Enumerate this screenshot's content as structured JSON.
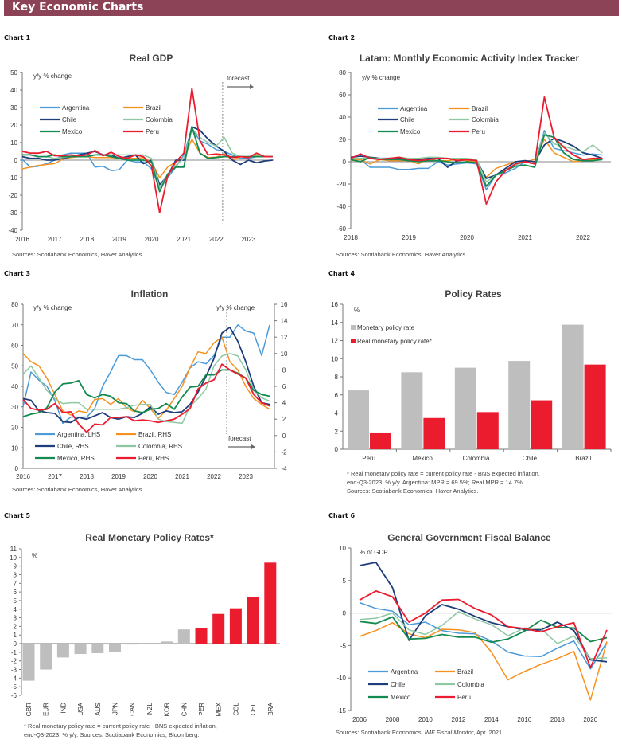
{
  "header": {
    "title": "Key Economic Charts"
  },
  "colors": {
    "Argentina": "#4b9bd9",
    "Brazil": "#f7911e",
    "Chile": "#1e3d7b",
    "Colombia": "#8ec8a2",
    "Mexico": "#138a4f",
    "Peru": "#ec1c2f",
    "grey_bar": "#bebebe",
    "red_bar": "#ec1c2f",
    "header_bg": "#8c4257"
  },
  "chart_data": [
    {
      "label": "Chart 1",
      "type": "line",
      "title": "Real GDP",
      "y_unit": "y/y % change",
      "ylim": [
        -40,
        50
      ],
      "y_ticks": [
        "-40",
        "-30",
        "-20",
        "-10",
        "0",
        "10",
        "20",
        "30",
        "40",
        "50"
      ],
      "x_ticks": [
        "2016",
        "2017",
        "2018",
        "2019",
        "2020",
        "2021",
        "2022",
        "2023"
      ],
      "x_start": 2016,
      "x_step": 0.25,
      "forecast_label": "forecast",
      "forecast_from": 2022.2,
      "series": [
        {
          "name": "Argentina",
          "values": [
            0.5,
            -4,
            -3.5,
            -2,
            0,
            3,
            4,
            4,
            4,
            -4,
            -3.5,
            -6,
            -5.5,
            0,
            -1,
            -1,
            -5,
            -16,
            -10,
            -4,
            3,
            18,
            11,
            9,
            6,
            5,
            3,
            1,
            1,
            2,
            2,
            2
          ]
        },
        {
          "name": "Brazil",
          "values": [
            -5,
            -4,
            -3,
            -2.5,
            -2,
            0.5,
            1.5,
            2,
            2,
            1.5,
            1.5,
            1.5,
            1,
            1,
            1,
            1.5,
            -1,
            -10,
            -4,
            -1,
            1,
            12,
            4,
            1.5,
            1.7,
            3.7,
            0,
            2,
            2,
            2.5,
            2,
            2
          ]
        },
        {
          "name": "Chile",
          "values": [
            2,
            1,
            1,
            0,
            0,
            1,
            2,
            3,
            4,
            5,
            3,
            3,
            1,
            2,
            3,
            -2,
            0,
            -14,
            -9,
            0,
            0,
            19,
            17,
            12,
            8,
            5,
            0,
            -2.5,
            0,
            -1.5,
            -0.5,
            0
          ]
        },
        {
          "name": "Colombia",
          "values": [
            3,
            3,
            2,
            2,
            1,
            1.5,
            2,
            2,
            2,
            3,
            3,
            3,
            3,
            3,
            3,
            3,
            1,
            -16,
            -8,
            -3,
            1,
            18,
            13,
            10,
            8,
            13,
            4,
            2,
            2,
            3,
            2,
            2
          ]
        },
        {
          "name": "Mexico",
          "values": [
            3,
            3,
            2,
            2,
            3,
            2,
            2,
            2,
            2,
            3,
            3,
            2,
            1,
            0,
            0,
            0,
            -1,
            -18,
            -8,
            -4,
            -4,
            19,
            4,
            1,
            1.5,
            2,
            2,
            2,
            2,
            2,
            2,
            2
          ]
        },
        {
          "name": "Peru",
          "values": [
            5,
            4,
            4,
            5,
            2.5,
            2.5,
            3,
            2.5,
            3,
            5.5,
            2.5,
            4.5,
            2,
            1,
            3,
            2,
            -3.5,
            -30,
            -9,
            -1,
            4,
            41,
            11,
            3,
            3.5,
            3,
            1.5,
            2,
            1.5,
            4,
            2,
            2
          ]
        }
      ],
      "sources": "Sources: Scotiabank Economics, Haver Analytics."
    },
    {
      "label": "Chart 2",
      "type": "line",
      "title": "Latam: Monthly Economic Activity Index Tracker",
      "y_unit": "y/y % change",
      "ylim": [
        -60,
        80
      ],
      "y_ticks": [
        "-60",
        "-40",
        "-20",
        "0",
        "20",
        "40",
        "60",
        "80"
      ],
      "x_ticks": [
        "2018",
        "2019",
        "2020",
        "2021",
        "2022"
      ],
      "x_start": 2018,
      "x_step": 0.1667,
      "series": [
        {
          "name": "Argentina",
          "values": [
            4,
            2,
            -5,
            -5,
            -5,
            -7,
            -7,
            -6,
            -6,
            0,
            -3,
            -2,
            -1,
            -2,
            -25,
            -12,
            -10,
            -6,
            0,
            -2,
            28,
            12,
            10,
            8,
            6,
            7,
            6
          ]
        },
        {
          "name": "Brazil",
          "values": [
            1,
            2,
            -2,
            2,
            1,
            1,
            1,
            -2,
            3,
            1,
            1,
            2,
            1,
            0,
            -14,
            -6,
            -3,
            0,
            0,
            2,
            20,
            8,
            4,
            0,
            1,
            2,
            3
          ]
        },
        {
          "name": "Chile",
          "values": [
            4,
            5,
            4,
            3,
            3,
            3,
            1,
            2,
            3,
            3,
            -5,
            1,
            2,
            1,
            -15,
            -12,
            -6,
            0,
            1,
            0,
            15,
            21,
            18,
            14,
            8,
            6,
            3
          ]
        },
        {
          "name": "Colombia",
          "values": [
            3,
            3,
            3,
            3,
            3,
            4,
            3,
            3,
            4,
            4,
            3,
            3,
            3,
            2,
            -18,
            -12,
            -8,
            -3,
            0,
            -2,
            26,
            16,
            14,
            11,
            9,
            15,
            8
          ]
        },
        {
          "name": "Mexico",
          "values": [
            2,
            0,
            4,
            2,
            2,
            2,
            1,
            0,
            1,
            1,
            0,
            -1,
            0,
            -1,
            -22,
            -12,
            -8,
            -4,
            -3,
            -5,
            24,
            22,
            8,
            2,
            1,
            1,
            2
          ]
        },
        {
          "name": "Peru",
          "values": [
            3,
            7,
            3,
            2,
            3,
            4,
            2,
            1,
            2,
            3,
            3,
            1,
            2,
            1,
            -38,
            -18,
            -8,
            -2,
            0,
            -2,
            58,
            22,
            13,
            6,
            2,
            3,
            3
          ]
        }
      ],
      "sources": "Sources: Scotiabank Economics, Haver Analytics."
    },
    {
      "label": "Chart 3",
      "type": "line",
      "title": "Inflation",
      "y_unit": "y/y % change",
      "y2_unit": "y/y % change",
      "ylim": [
        0,
        80
      ],
      "y_ticks": [
        "0",
        "10",
        "20",
        "30",
        "40",
        "50",
        "60",
        "70",
        "80"
      ],
      "y2lim": [
        -4,
        16
      ],
      "y2_ticks": [
        "-4",
        "-2",
        "0",
        "2",
        "4",
        "6",
        "8",
        "10",
        "12",
        "14",
        "16"
      ],
      "x_ticks": [
        "2016",
        "2017",
        "2018",
        "2019",
        "2020",
        "2021",
        "2022",
        "2023"
      ],
      "x_start": 2016,
      "x_step": 0.25,
      "forecast_label": "forecast",
      "forecast_from": 2022.4,
      "series": [
        {
          "name": "Argentina",
          "legend": "Argentina, LHS",
          "axis": "left",
          "values": [
            30,
            47,
            43,
            40,
            33,
            22,
            25,
            25,
            25,
            29,
            40,
            47,
            55,
            55,
            53,
            53,
            48,
            42,
            37,
            36,
            42,
            49,
            52,
            51,
            55,
            64,
            64,
            70,
            67,
            66,
            55,
            70
          ]
        },
        {
          "name": "Brazil",
          "legend": "Brazil, RHS",
          "axis": "right",
          "values": [
            10,
            9,
            8.5,
            7,
            5,
            3,
            2.5,
            3,
            2.8,
            4.4,
            4.5,
            3.8,
            4.5,
            3.4,
            2.9,
            4.3,
            3.3,
            2.1,
            3.1,
            4.5,
            6,
            8.3,
            10.2,
            10,
            11.3,
            12,
            9,
            8,
            6,
            4.5,
            3.8,
            3.2
          ]
        },
        {
          "name": "Chile",
          "legend": "Chile, RHS",
          "axis": "right",
          "values": [
            4.5,
            4.3,
            3,
            2.8,
            2.7,
            1.7,
            1.6,
            2.2,
            2,
            2.4,
            2.8,
            2.2,
            2,
            2.3,
            2.2,
            2.7,
            3.5,
            2.6,
            3,
            2.8,
            2.9,
            3.8,
            5.3,
            7.2,
            9.4,
            12.5,
            13.2,
            11.5,
            9,
            6,
            4,
            3.8
          ]
        },
        {
          "name": "Colombia",
          "legend": "Colombia, RHS",
          "axis": "right",
          "values": [
            7.5,
            8.5,
            7,
            5.5,
            4.5,
            3.9,
            4,
            4,
            3.2,
            3.2,
            3.2,
            3.2,
            3.2,
            3.4,
            3.7,
            3.8,
            3.8,
            2,
            1.7,
            1.6,
            1.5,
            3.6,
            4.5,
            5.7,
            8.5,
            9.7,
            10,
            9.7,
            8,
            5.5,
            4.6,
            4.2
          ]
        },
        {
          "name": "Mexico",
          "legend": "Mexico, RHS",
          "axis": "right",
          "values": [
            2.3,
            2.6,
            2.8,
            3.4,
            5.3,
            6.3,
            6.4,
            6.7,
            5,
            4.6,
            5,
            4.8,
            4,
            3.9,
            3,
            2.8,
            3.2,
            3.3,
            3.9,
            3.2,
            4.7,
            5.9,
            6,
            7.4,
            7.4,
            8,
            8,
            7.6,
            7,
            5.5,
            5,
            4.8
          ]
        },
        {
          "name": "Peru",
          "legend": "Peru, RHS",
          "axis": "right",
          "values": [
            4.4,
            3.3,
            3.1,
            3.2,
            3.9,
            2.8,
            2.9,
            1.4,
            0.4,
            1.4,
            1.3,
            2.2,
            2.2,
            2.3,
            1.8,
            1.9,
            1.8,
            1.6,
            1.8,
            2,
            2.6,
            3.3,
            5.7,
            6.4,
            6.8,
            8.7,
            8,
            7.5,
            7,
            5,
            4,
            3.6
          ]
        }
      ],
      "sources": "Sources: Scotiabank Economics, Haver Analytics."
    },
    {
      "label": "Chart 4",
      "type": "bar",
      "title": "Policy Rates",
      "y_unit": "%",
      "ylim": [
        0,
        16
      ],
      "y_ticks": [
        "0",
        "2",
        "4",
        "6",
        "8",
        "10",
        "12",
        "14",
        "16"
      ],
      "categories": [
        "Peru",
        "Mexico",
        "Colombia",
        "Chile",
        "Brazil"
      ],
      "series": [
        {
          "name": "Monetary policy rate",
          "color": "#bebebe",
          "values": [
            6.5,
            8.5,
            9.0,
            9.75,
            13.75
          ]
        },
        {
          "name": "Real monetary policy rate*",
          "color": "#ec1c2f",
          "values": [
            1.85,
            3.45,
            4.1,
            5.4,
            9.35
          ]
        }
      ],
      "footnote": [
        "* Real monetary policy rate = current policy rate - BNS expected inflation,",
        "end-Q3-2023, % y/y. Argentina: MPR = 69.5%; Real MPR = 14.7%.",
        "Sources: Scotiabank Economics, Haver Analytics."
      ]
    },
    {
      "label": "Chart 5",
      "type": "bar",
      "title": "Real Monetary Policy Rates*",
      "y_unit": "%",
      "ylim": [
        -6,
        11
      ],
      "y_ticks": [
        "-6",
        "-5",
        "-4",
        "-3",
        "-2",
        "-1",
        "0",
        "1",
        "2",
        "3",
        "4",
        "5",
        "6",
        "7",
        "8",
        "9",
        "10",
        "11"
      ],
      "categories": [
        "GBR",
        "EUR",
        "IND",
        "USA",
        "AUS",
        "JPN",
        "CAN",
        "NZL",
        "KOR",
        "CHN",
        "PER",
        "MEX",
        "COL",
        "CHL",
        "BRA"
      ],
      "values": [
        -4.3,
        -3.0,
        -1.6,
        -1.2,
        -1.1,
        -1.0,
        -0.1,
        0.0,
        0.25,
        1.65,
        1.85,
        3.45,
        4.1,
        5.4,
        9.4
      ],
      "highlight": [
        false,
        false,
        false,
        false,
        false,
        false,
        false,
        false,
        false,
        false,
        true,
        true,
        true,
        true,
        true
      ],
      "footnote": [
        "* Real monetary policy rate = current policy rate - BNS expected inflation,",
        "end-Q3-2023, % y/y. Sources: Scotiabank Economics, Bloomberg."
      ]
    },
    {
      "label": "Chart 6",
      "type": "line",
      "title": "General Government Fiscal Balance",
      "y_unit": "% of GDP",
      "ylim": [
        -15,
        10
      ],
      "y_ticks": [
        "-15",
        "-10",
        "-5",
        "0",
        "5",
        "10"
      ],
      "x_ticks": [
        "2006",
        "2008",
        "2010",
        "2012",
        "2014",
        "2016",
        "2018",
        "2020"
      ],
      "x_start": 2006,
      "x_step": 1,
      "series": [
        {
          "name": "Argentina",
          "values": [
            1.6,
            0.7,
            0.3,
            -1.8,
            -1.4,
            -2.7,
            -3.1,
            -3.2,
            -4.3,
            -6,
            -6.6,
            -6.7,
            -5.4,
            -4.3,
            -8.6,
            -4.5
          ]
        },
        {
          "name": "Brazil",
          "values": [
            -3.6,
            -2.7,
            -1.5,
            -3.2,
            -3.8,
            -2.5,
            -2.6,
            -3,
            -6,
            -10.3,
            -9,
            -7.9,
            -7,
            -5.9,
            -13.4,
            -4.4
          ]
        },
        {
          "name": "Chile",
          "values": [
            7.3,
            7.8,
            3.9,
            -4.2,
            -0.4,
            1.3,
            0.6,
            -0.5,
            -1.5,
            -2.1,
            -2.6,
            -2.6,
            -1.4,
            -2.7,
            -7.2,
            -7.5
          ]
        },
        {
          "name": "Colombia",
          "values": [
            -1,
            -0.8,
            0,
            -2.6,
            -3.3,
            -1.9,
            0.2,
            -0.9,
            -1.8,
            -3.5,
            -2.3,
            -2.4,
            -4.7,
            -3.5,
            -7,
            -6.9
          ]
        },
        {
          "name": "Mexico",
          "values": [
            -1.3,
            -1.6,
            -0.6,
            -4,
            -3.9,
            -3.3,
            -3.7,
            -3.7,
            -4.5,
            -4,
            -2.8,
            -1.1,
            -2.2,
            -2.3,
            -4.4,
            -3.8
          ]
        },
        {
          "name": "Peru",
          "values": [
            2,
            3.4,
            2.5,
            -1.4,
            0,
            2,
            2.1,
            0.7,
            -0.3,
            -2.1,
            -2.4,
            -2.9,
            -2.1,
            -1.5,
            -8.4,
            -2.6
          ]
        }
      ],
      "sources_parts": [
        "Sources: Scotiabank Economics, ",
        "IMF Fiscal Monitor",
        ", Apr. 2021."
      ]
    }
  ]
}
